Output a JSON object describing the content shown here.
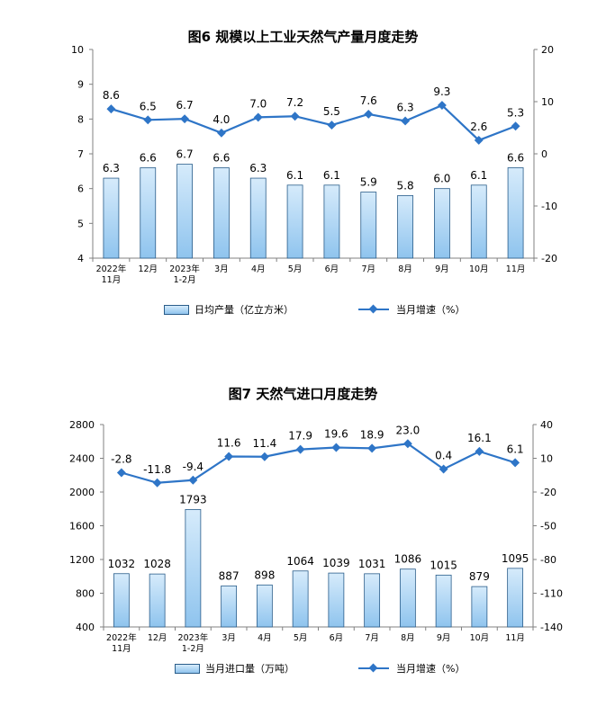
{
  "charts": [
    {
      "title": "图6  规模以上工业天然气产量月度走势",
      "legend_bar": "日均产量（亿立方米）",
      "legend_line": "当月增速（%）"
    },
    {
      "title": "图7  天然气进口月度走势",
      "legend_bar": "当月进口量（万吨）",
      "legend_line": "当月增速（%）"
    }
  ],
  "colors": {
    "bar_fill_top": "#d6ebfb",
    "bar_fill_bottom": "#8fc4ee",
    "bar_stroke": "#2a5d8a",
    "line": "#2e75c7"
  },
  "chart_data": [
    {
      "type": "bar+line",
      "title": "图6  规模以上工业天然气产量月度走势",
      "categories": [
        [
          "2022年",
          "11月"
        ],
        [
          "12月"
        ],
        [
          "2023年",
          "1-2月"
        ],
        [
          "3月"
        ],
        [
          "4月"
        ],
        [
          "5月"
        ],
        [
          "6月"
        ],
        [
          "7月"
        ],
        [
          "8月"
        ],
        [
          "9月"
        ],
        [
          "10月"
        ],
        [
          "11月"
        ]
      ],
      "series": [
        {
          "name": "日均产量（亿立方米）",
          "type": "bar",
          "axis": "left",
          "values": [
            6.3,
            6.6,
            6.7,
            6.6,
            6.3,
            6.1,
            6.1,
            5.9,
            5.8,
            6.0,
            6.1,
            6.6
          ],
          "labels": [
            "6.3",
            "6.6",
            "6.7",
            "6.6",
            "6.3",
            "6.1",
            "6.1",
            "5.9",
            "5.8",
            "6.0",
            "6.1",
            "6.6"
          ]
        },
        {
          "name": "当月增速（%）",
          "type": "line",
          "axis": "right",
          "values": [
            8.6,
            6.5,
            6.7,
            4.0,
            7.0,
            7.2,
            5.5,
            7.6,
            6.3,
            9.3,
            2.6,
            5.3
          ],
          "labels": [
            "8.6",
            "6.5",
            "6.7",
            "4.0",
            "7.0",
            "7.2",
            "5.5",
            "7.6",
            "6.3",
            "9.3",
            "2.6",
            "5.3"
          ]
        }
      ],
      "y_left": {
        "min": 4,
        "max": 10,
        "ticks": [
          "4",
          "5",
          "6",
          "7",
          "8",
          "9",
          "10"
        ]
      },
      "y_right": {
        "min": -20,
        "max": 20,
        "ticks": [
          "-20",
          "-10",
          "0",
          "10",
          "20"
        ]
      },
      "grid": false,
      "legend": "bottom"
    },
    {
      "type": "bar+line",
      "title": "图7  天然气进口月度走势",
      "categories": [
        [
          "2022年",
          "11月"
        ],
        [
          "12月"
        ],
        [
          "2023年",
          "1-2月"
        ],
        [
          "3月"
        ],
        [
          "4月"
        ],
        [
          "5月"
        ],
        [
          "6月"
        ],
        [
          "7月"
        ],
        [
          "8月"
        ],
        [
          "9月"
        ],
        [
          "10月"
        ],
        [
          "11月"
        ]
      ],
      "series": [
        {
          "name": "当月进口量（万吨）",
          "type": "bar",
          "axis": "left",
          "values": [
            1032,
            1028,
            1793,
            887,
            898,
            1064,
            1039,
            1031,
            1086,
            1015,
            879,
            1095
          ],
          "labels": [
            "1032",
            "1028",
            "1793",
            "887",
            "898",
            "1064",
            "1039",
            "1031",
            "1086",
            "1015",
            "879",
            "1095"
          ]
        },
        {
          "name": "当月增速（%）",
          "type": "line",
          "axis": "right",
          "values": [
            -2.8,
            -11.8,
            -9.4,
            11.6,
            11.4,
            17.9,
            19.6,
            18.9,
            23.0,
            0.4,
            16.1,
            6.1
          ],
          "labels": [
            "-2.8",
            "-11.8",
            "-9.4",
            "11.6",
            "11.4",
            "17.9",
            "19.6",
            "18.9",
            "23.0",
            "0.4",
            "16.1",
            "6.1"
          ]
        }
      ],
      "y_left": {
        "min": 400,
        "max": 2800,
        "ticks": [
          "400",
          "800",
          "1200",
          "1600",
          "2000",
          "2400",
          "2800"
        ]
      },
      "y_right": {
        "min": -140,
        "max": 40,
        "ticks": [
          "-140",
          "-110",
          "-80",
          "-50",
          "-20",
          "10",
          "40"
        ]
      },
      "grid": false,
      "legend": "bottom"
    }
  ]
}
